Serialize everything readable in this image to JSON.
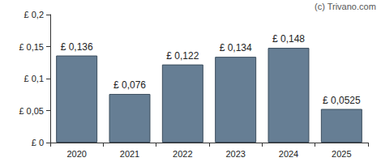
{
  "chart_data": {
    "type": "bar",
    "annotations": [
      "(c) Trivano.com"
    ],
    "categories": [
      "2020",
      "2021",
      "2022",
      "2023",
      "2024",
      "2025"
    ],
    "values": [
      0.136,
      0.076,
      0.122,
      0.134,
      0.148,
      0.0525
    ],
    "value_labels": [
      "£ 0,136",
      "£ 0,076",
      "£ 0,122",
      "£ 0,134",
      "£ 0,148",
      "£ 0,0525"
    ],
    "color": "#667e94",
    "ylim": [
      0,
      0.2
    ],
    "yticks": [
      {
        "value": 0,
        "label": "£ 0"
      },
      {
        "value": 0.05,
        "label": "£ 0,05"
      },
      {
        "value": 0.1,
        "label": "£ 0,1"
      },
      {
        "value": 0.15,
        "label": "£ 0,15"
      },
      {
        "value": 0.2,
        "label": "£ 0,2"
      }
    ],
    "grid": false,
    "data_labels": true
  }
}
